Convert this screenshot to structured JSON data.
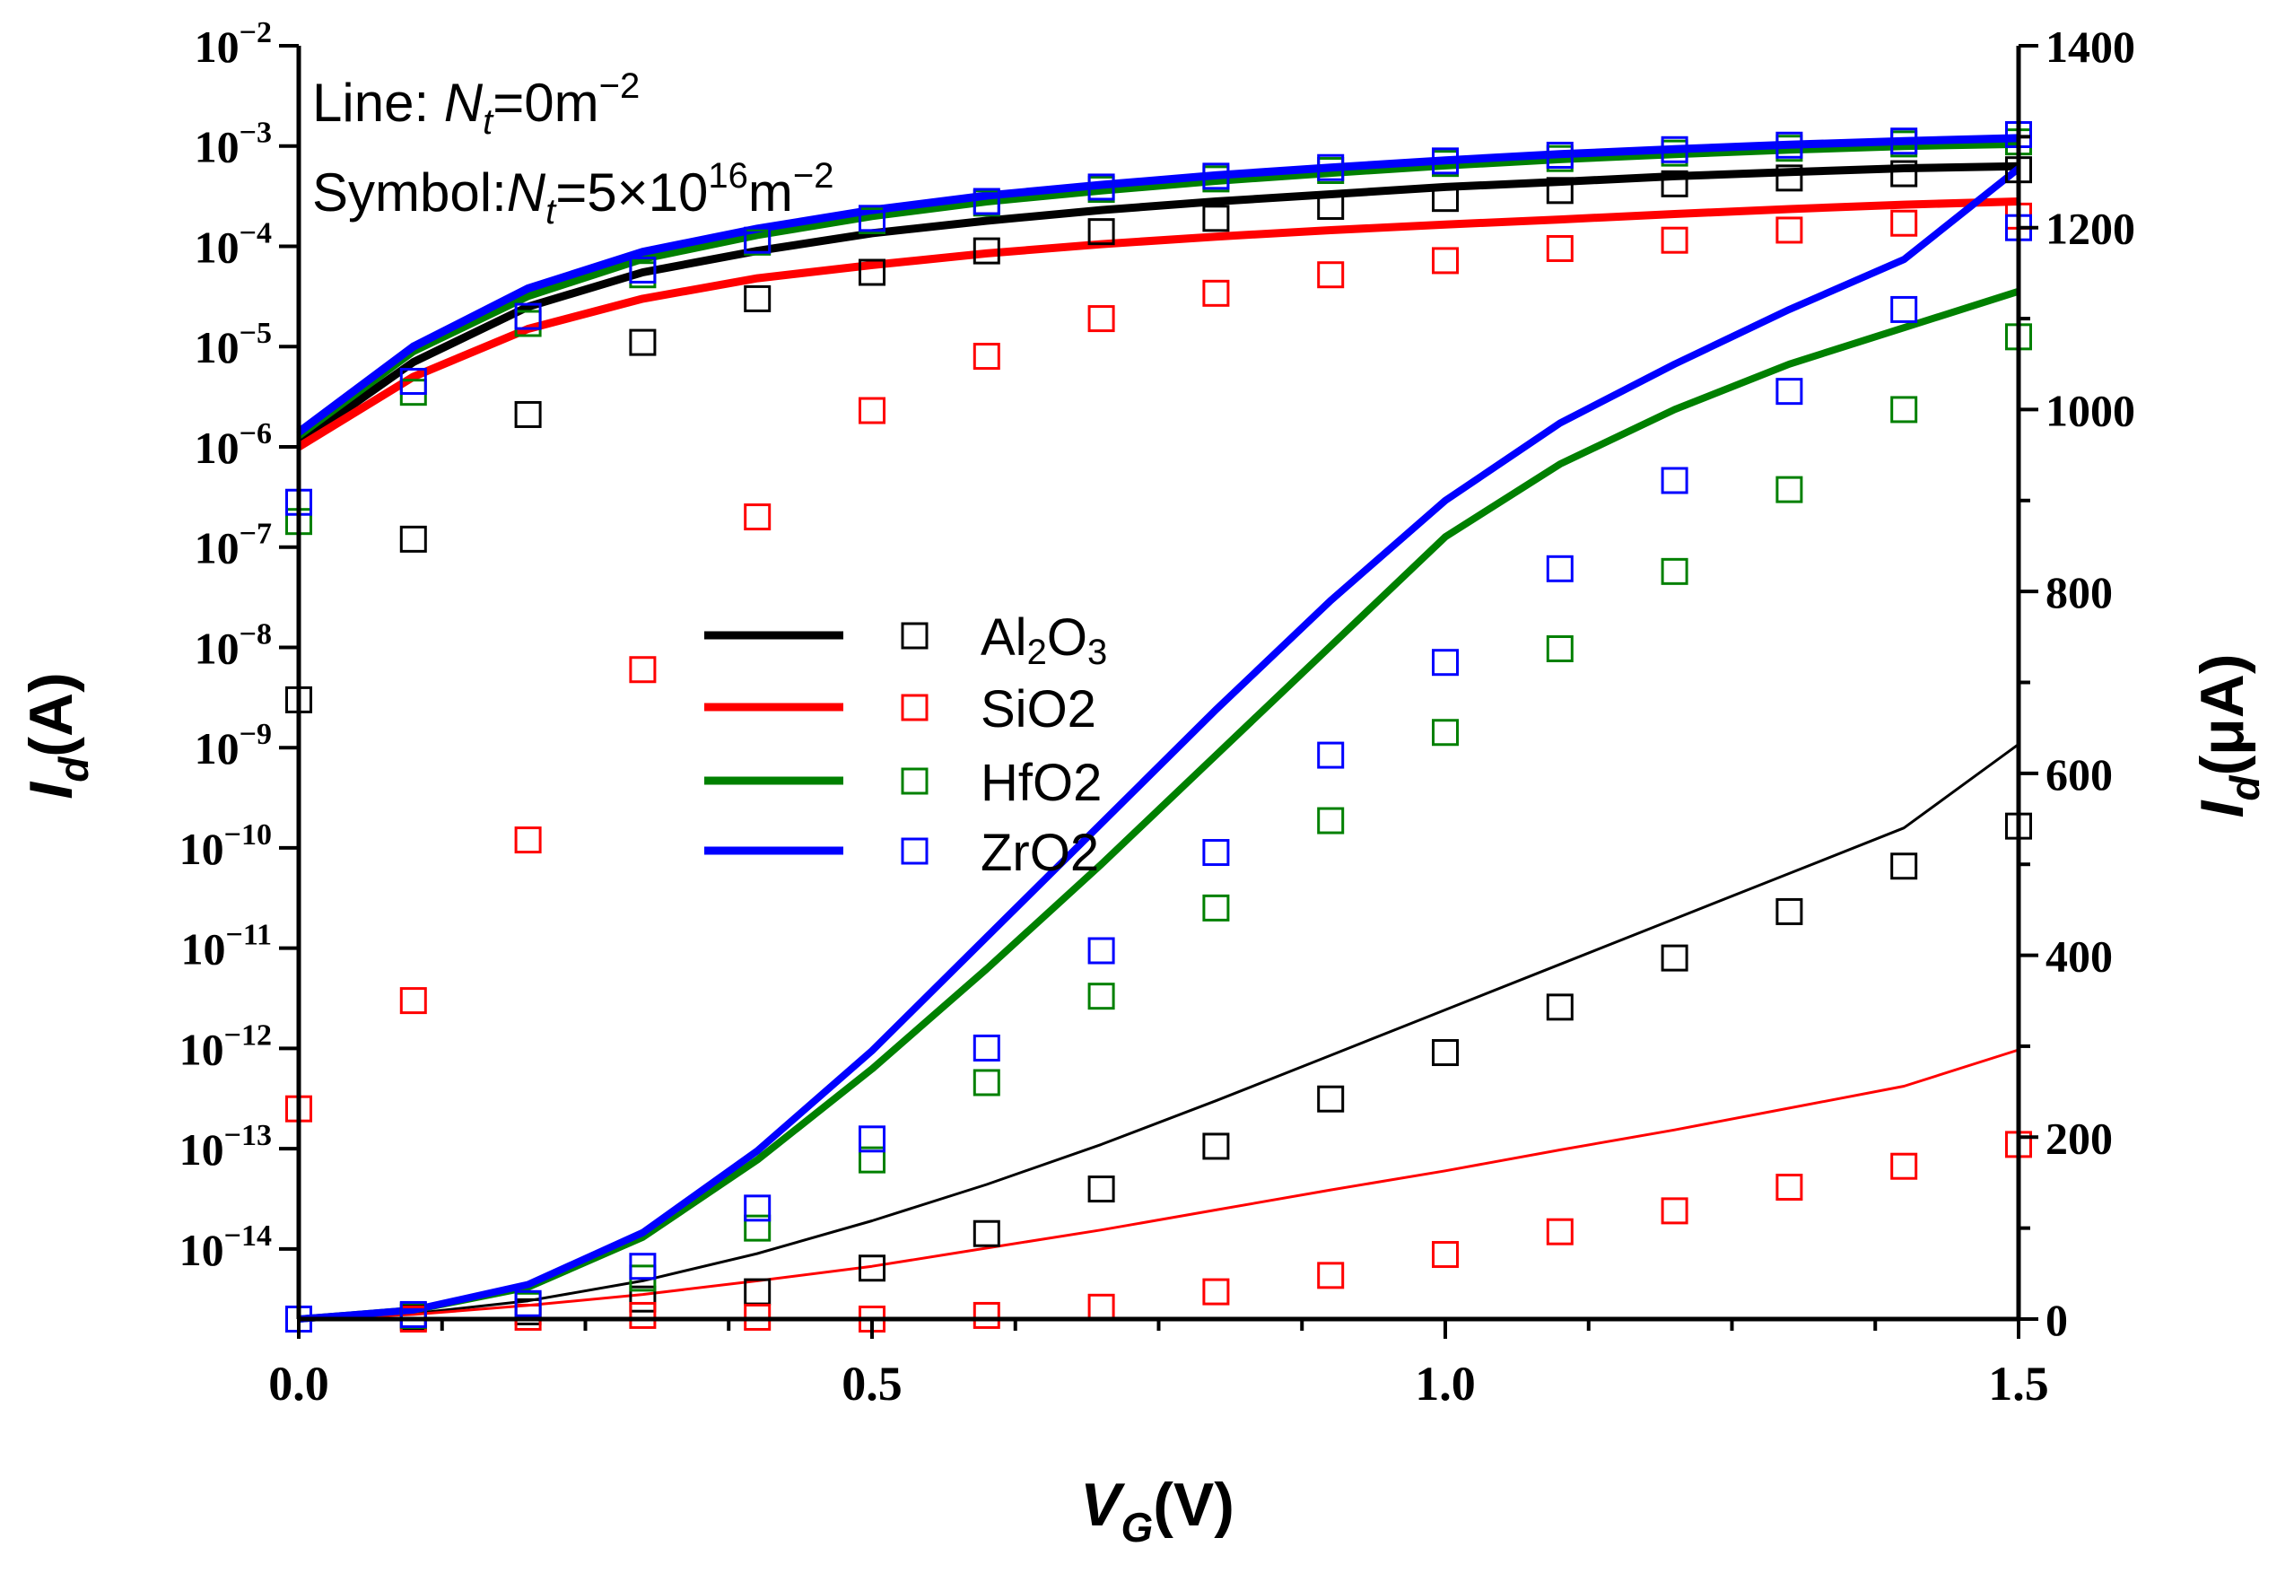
{
  "chart_data": {
    "type": "line",
    "x_axis": {
      "label_main": "V",
      "label_sub": "G",
      "label_unit": "(V)",
      "range": [
        0.0,
        1.5
      ],
      "ticks": [
        0.0,
        0.5,
        1.0,
        1.5
      ],
      "tick_labels": [
        "0.0",
        "0.5",
        "1.0",
        "1.5"
      ]
    },
    "y_left": {
      "label_main": "I",
      "label_sub": "d",
      "label_unit": "(A)",
      "scale": "log",
      "range": [
        2e-15,
        0.01
      ],
      "tick_exponents": [
        -2,
        -3,
        -4,
        -5,
        -6,
        -7,
        -8,
        -9,
        -10,
        -11,
        -12,
        -13,
        -14
      ],
      "tick_base": "10"
    },
    "y_right": {
      "label_main": "I",
      "label_sub": "d",
      "label_unit": "(μA)",
      "scale": "linear",
      "range": [
        0,
        1400
      ],
      "ticks": [
        0,
        200,
        400,
        600,
        800,
        1000,
        1200,
        1400
      ],
      "tick_labels": [
        "0",
        "200",
        "400",
        "600",
        "800",
        "1000",
        "1200",
        "1400"
      ]
    },
    "annotations": {
      "line1_prefix": "Line: ",
      "line1_var": "N",
      "line1_sub": "t",
      "line1_suffix": "=0m",
      "line1_exp": "−2",
      "line2_prefix": "Symbol:",
      "line2_var": "N",
      "line2_sub": "t",
      "line2_mid": "=5×10",
      "line2_exp1": "16",
      "line2_unit": "m",
      "line2_exp2": "−2"
    },
    "x": [
      0.0,
      0.1,
      0.2,
      0.3,
      0.4,
      0.5,
      0.6,
      0.7,
      0.8,
      0.9,
      1.0,
      1.1,
      1.2,
      1.3,
      1.4,
      1.5
    ],
    "series": [
      {
        "name": "Al2O3",
        "legend_main": "Al",
        "legend_parts": [
          "Al",
          "2",
          "O",
          "3"
        ],
        "color": "#000000",
        "line_log": [
          1.1e-06,
          7e-06,
          2.5e-05,
          5.5e-05,
          9e-05,
          0.000135,
          0.00018,
          0.00023,
          0.00028,
          0.00033,
          0.00039,
          0.00044,
          0.0005,
          0.00055,
          0.0006,
          0.00063
        ],
        "symbol_log": [
          3e-09,
          1.2e-07,
          2.1e-06,
          1.1e-05,
          3e-05,
          5.5e-05,
          9e-05,
          0.00014,
          0.00019,
          0.00025,
          0.0003,
          0.00036,
          0.00042,
          0.00048,
          0.00053,
          0.00058
        ],
        "line_lin": [
          0,
          6,
          20,
          42,
          72,
          108,
          148,
          192,
          240,
          290,
          340,
          390,
          440,
          490,
          540,
          632
        ],
        "symbol_lin": [
          0,
          2,
          8,
          22,
          30,
          56,
          94,
          143,
          190,
          242,
          293,
          343,
          397,
          448,
          498,
          542
        ]
      },
      {
        "name": "SiO2",
        "legend_main": "SiO2",
        "legend_parts": [
          "SiO2"
        ],
        "color": "#ff0000",
        "line_log": [
          1e-06,
          5e-06,
          1.5e-05,
          3e-05,
          4.8e-05,
          6.5e-05,
          8.5e-05,
          0.000105,
          0.000125,
          0.000145,
          0.000165,
          0.000185,
          0.00021,
          0.000235,
          0.00026,
          0.00028
        ],
        "symbol_log": [
          2.5e-13,
          3e-12,
          1.2e-10,
          6e-09,
          2e-07,
          2.3e-06,
          8e-06,
          1.9e-05,
          3.4e-05,
          5.2e-05,
          7.2e-05,
          9.5e-05,
          0.000115,
          0.000145,
          0.00017,
          0.0002
        ],
        "line_lin": [
          0,
          5,
          15,
          27,
          42,
          58,
          78,
          98,
          120,
          142,
          163,
          186,
          208,
          232,
          256,
          296
        ],
        "symbol_lin": [
          0,
          0,
          2,
          4,
          2,
          0,
          4,
          13,
          30,
          48,
          71,
          96,
          119,
          145,
          168,
          192
        ]
      },
      {
        "name": "HfO2",
        "legend_main": "HfO2",
        "legend_parts": [
          "HfO2"
        ],
        "color": "#008000",
        "line_log": [
          1.3e-06,
          9e-06,
          3.2e-05,
          7.5e-05,
          0.00013,
          0.0002,
          0.00028,
          0.00036,
          0.00045,
          0.00054,
          0.00064,
          0.00074,
          0.00083,
          0.00092,
          0.001,
          0.00105
        ],
        "symbol_log": [
          1.8e-07,
          3.5e-06,
          1.7e-05,
          5.2e-05,
          0.00011,
          0.00018,
          0.00027,
          0.00037,
          0.00047,
          0.00057,
          0.00067,
          0.00075,
          0.00085,
          0.00095,
          0.00105,
          0.0011
        ],
        "line_lin": [
          0,
          10,
          35,
          90,
          175,
          275,
          385,
          500,
          620,
          740,
          860,
          940,
          1000,
          1050,
          1090,
          1130
        ],
        "symbol_lin": [
          0,
          4,
          15,
          45,
          100,
          175,
          260,
          355,
          452,
          548,
          645,
          737,
          822,
          912,
          1000,
          1080
        ]
      },
      {
        "name": "ZrO2",
        "legend_main": "ZrO2",
        "legend_parts": [
          "ZrO2"
        ],
        "color": "#0000ff",
        "line_log": [
          1.4e-06,
          1e-05,
          3.8e-05,
          8.8e-05,
          0.00015,
          0.00023,
          0.00032,
          0.00041,
          0.00051,
          0.00061,
          0.00072,
          0.00083,
          0.00093,
          0.00103,
          0.00112,
          0.0012
        ],
        "symbol_log": [
          2.8e-07,
          4.5e-06,
          2e-05,
          5.8e-05,
          0.000115,
          0.00019,
          0.00028,
          0.00039,
          0.0005,
          0.00061,
          0.00071,
          0.00081,
          0.00092,
          0.00102,
          0.00112,
          0.0013
        ],
        "line_lin": [
          0,
          10,
          38,
          95,
          185,
          295,
          420,
          545,
          670,
          790,
          900,
          985,
          1050,
          1110,
          1165,
          1265
        ],
        "symbol_lin": [
          0,
          5,
          17,
          58,
          122,
          198,
          298,
          405,
          513,
          620,
          722,
          825,
          922,
          1020,
          1110,
          1200
        ]
      }
    ]
  }
}
